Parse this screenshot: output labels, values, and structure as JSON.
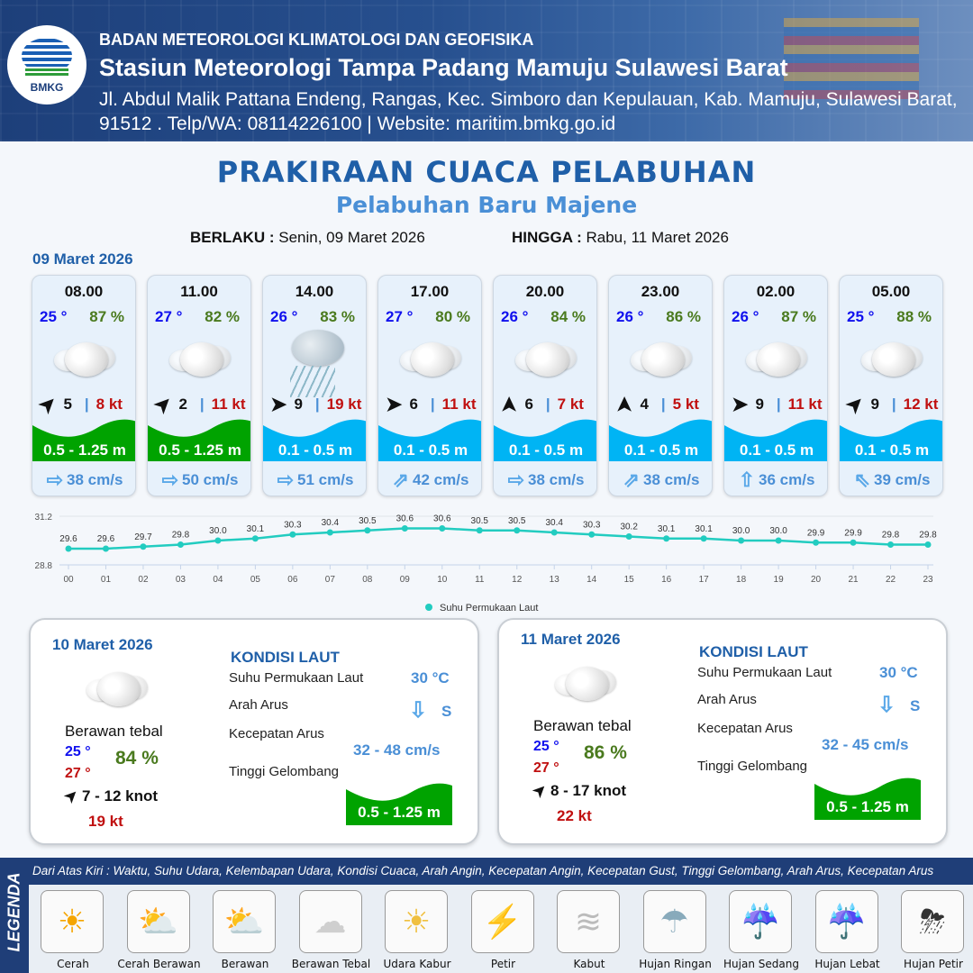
{
  "header": {
    "logo_text": "BMKG",
    "agency": "BADAN METEOROLOGI KLIMATOLOGI DAN GEOFISIKA",
    "station": "Stasiun Meteorologi Tampa Padang Mamuju Sulawesi Barat",
    "address": "Jl. Abdul Malik Pattana Endeng, Rangas, Kec. Simboro dan Kepulauan, Kab. Mamuju, Sulawesi Barat, 91512 . Telp/WA: 08114226100 | Website: maritim.bmkg.go.id"
  },
  "title": "PRAKIRAAN CUACA PELABUHAN",
  "subtitle": "Pelabuhan Baru Majene",
  "validity": {
    "from_label": "BERLAKU :",
    "from": "Senin, 09 Maret 2026",
    "to_label": "HINGGA :",
    "to": "Rabu, 11 Maret 2026"
  },
  "day1_date": "09 Maret 2026",
  "hourly": [
    {
      "time": "08.00",
      "temp": "25 °",
      "rh": "87 %",
      "icon": "berawan-tebal",
      "wind_dir": "NE",
      "wind": "5",
      "gust": "8 kt",
      "wave": "0.5 - 1.25 m",
      "wave_color": "#00a300",
      "cur_dir": "E",
      "current": "38 cm/s"
    },
    {
      "time": "11.00",
      "temp": "27 °",
      "rh": "82 %",
      "icon": "berawan-tebal",
      "wind_dir": "NE",
      "wind": "2",
      "gust": "11 kt",
      "wave": "0.5 - 1.25 m",
      "wave_color": "#00a300",
      "cur_dir": "E",
      "current": "50 cm/s"
    },
    {
      "time": "14.00",
      "temp": "26 °",
      "rh": "83 %",
      "icon": "hujan-ringan",
      "wind_dir": "E",
      "wind": "9",
      "gust": "19 kt",
      "wave": "0.1 - 0.5 m",
      "wave_color": "#00b4f4",
      "cur_dir": "E",
      "current": "51 cm/s"
    },
    {
      "time": "17.00",
      "temp": "27 °",
      "rh": "80 %",
      "icon": "berawan-tebal",
      "wind_dir": "E",
      "wind": "6",
      "gust": "11 kt",
      "wave": "0.1 - 0.5 m",
      "wave_color": "#00b4f4",
      "cur_dir": "NE",
      "current": "42 cm/s"
    },
    {
      "time": "20.00",
      "temp": "26 °",
      "rh": "84 %",
      "icon": "berawan-tebal",
      "wind_dir": "N",
      "wind": "6",
      "gust": "7 kt",
      "wave": "0.1 - 0.5 m",
      "wave_color": "#00b4f4",
      "cur_dir": "E",
      "current": "38 cm/s"
    },
    {
      "time": "23.00",
      "temp": "26 °",
      "rh": "86 %",
      "icon": "berawan-tebal",
      "wind_dir": "N",
      "wind": "4",
      "gust": "5 kt",
      "wave": "0.1 - 0.5 m",
      "wave_color": "#00b4f4",
      "cur_dir": "NE",
      "current": "38 cm/s"
    },
    {
      "time": "02.00",
      "temp": "26 °",
      "rh": "87 %",
      "icon": "berawan-tebal",
      "wind_dir": "E",
      "wind": "9",
      "gust": "11 kt",
      "wave": "0.1 - 0.5 m",
      "wave_color": "#00b4f4",
      "cur_dir": "N",
      "current": "36 cm/s"
    },
    {
      "time": "05.00",
      "temp": "25 °",
      "rh": "88 %",
      "icon": "berawan-tebal",
      "wind_dir": "NE",
      "wind": "9",
      "gust": "12 kt",
      "wave": "0.1 - 0.5 m",
      "wave_color": "#00b4f4",
      "cur_dir": "NW",
      "current": "39 cm/s"
    }
  ],
  "chart_data": {
    "type": "line",
    "x": [
      "00",
      "01",
      "02",
      "03",
      "04",
      "05",
      "06",
      "07",
      "08",
      "09",
      "10",
      "11",
      "12",
      "13",
      "14",
      "15",
      "16",
      "17",
      "18",
      "19",
      "20",
      "21",
      "22",
      "23"
    ],
    "series": [
      {
        "name": "Suhu Permukaan Laut",
        "values": [
          29.6,
          29.6,
          29.7,
          29.8,
          30.0,
          30.1,
          30.3,
          30.4,
          30.5,
          30.6,
          30.6,
          30.5,
          30.5,
          30.4,
          30.3,
          30.2,
          30.1,
          30.1,
          30.0,
          30.0,
          29.9,
          29.9,
          29.8,
          29.8
        ],
        "color": "#22ccc0"
      }
    ],
    "ylim": [
      28.8,
      31.2
    ],
    "yticks": [
      "28.8",
      "31.2"
    ],
    "legend": "bottom-center"
  },
  "days": [
    {
      "date": "10 Maret 2026",
      "cond": "Berawan tebal",
      "tmin": "25 °",
      "tmax": "27 °",
      "rh": "84 %",
      "wind": "7  - 12 knot",
      "gust": "19 kt",
      "kondisi": "KONDISI LAUT",
      "sst_label": "Suhu Permukaan Laut",
      "sst": "30 °C",
      "arah_label": "Arah Arus",
      "arah": "S",
      "kec_label": "Kecepatan Arus",
      "kec": "32  - 48 cm/s",
      "tinggi_label": "Tinggi Gelombang",
      "wave": "0.5 - 1.25 m",
      "wave_color": "#00a300"
    },
    {
      "date": "11 Maret 2026",
      "cond": "Berawan tebal",
      "tmin": "25 °",
      "tmax": "27 °",
      "rh": "86 %",
      "wind": "8  - 17 knot",
      "gust": "22 kt",
      "kondisi": "KONDISI LAUT",
      "sst_label": "Suhu Permukaan Laut",
      "sst": "30 °C",
      "arah_label": "Arah Arus",
      "arah": "S",
      "kec_label": "Kecepatan Arus",
      "kec": "32  - 45 cm/s",
      "tinggi_label": "Tinggi Gelombang",
      "wave": "0.5 - 1.25 m",
      "wave_color": "#00a300"
    }
  ],
  "legend": {
    "title": "LEGENDA",
    "desc": "Dari Atas Kiri : Waktu, Suhu Udara, Kelembapan Udara, Kondisi Cuaca, Arah Angin, Kecepatan Angin, Kecepatan Gust, Tinggi Gelombang, Arah Arus, Kecepatan Arus",
    "items": [
      {
        "label": "Cerah",
        "icon": "sun"
      },
      {
        "label": "Cerah Berawan",
        "icon": "sun-cloud"
      },
      {
        "label": "Berawan",
        "icon": "cloud-sun"
      },
      {
        "label": "Berawan Tebal",
        "icon": "cloud"
      },
      {
        "label": "Udara Kabur",
        "icon": "haze"
      },
      {
        "label": "Petir",
        "icon": "lightning"
      },
      {
        "label": "Kabut",
        "icon": "fog"
      },
      {
        "label": "Hujan Ringan",
        "icon": "light-rain"
      },
      {
        "label": "Hujan Sedang",
        "icon": "moderate-rain"
      },
      {
        "label": "Hujan Lebat",
        "icon": "heavy-rain"
      },
      {
        "label": "Hujan Petir",
        "icon": "thunderstorm"
      }
    ]
  }
}
